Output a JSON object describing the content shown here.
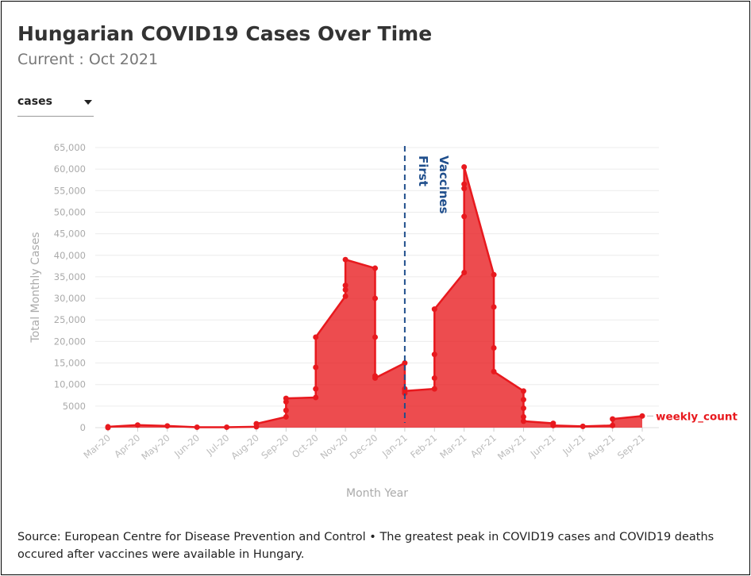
{
  "title": "Hungarian COVID19 Cases Over Time",
  "subtitle": "Current : Oct 2021",
  "dropdown": "cases",
  "source": "Source: European Centre for Disease Prevention and Control • The greatest peak in COVID19 cases and COVID19 deaths occured after vaccines were available in Hungary.",
  "chart_data": {
    "type": "area",
    "xlabel": "Month Year",
    "ylabel": "Total Monthly Cases",
    "categories": [
      "Mar-20",
      "Apr-20",
      "May-20",
      "Jun-20",
      "Jul-20",
      "Aug-20",
      "Sep-20",
      "Oct-20",
      "Nov-20",
      "Dec-20",
      "Jan-21",
      "Feb-21",
      "Mar-21",
      "Apr-21",
      "May-21",
      "Jun-21",
      "Jul-21",
      "Aug-21",
      "Sep-21"
    ],
    "ylim": [
      0,
      65000
    ],
    "yticks": [
      0,
      5000,
      {
        "value": 10000,
        "label": "10,000"
      },
      {
        "value": 15000,
        "label": "15,000"
      },
      {
        "value": 20000,
        "label": "20,000"
      },
      {
        "value": 25000,
        "label": "25,000"
      },
      {
        "value": 30000,
        "label": "30,000"
      },
      {
        "value": 35000,
        "label": "35,000"
      },
      {
        "value": 40000,
        "label": "40,000"
      },
      {
        "value": 45000,
        "label": "45,000"
      },
      {
        "value": 50000,
        "label": "50,000"
      },
      {
        "value": 55000,
        "label": "55,000"
      },
      {
        "value": 60000,
        "label": "60,000"
      },
      {
        "value": 65000,
        "label": "65,000"
      }
    ],
    "grid": true,
    "annotation": {
      "text": [
        "First",
        "Vaccines"
      ],
      "x": "Jan-21",
      "color": "#1f4e8c"
    },
    "series": [
      {
        "name": "weekly_count",
        "color": "#e8191e",
        "x": [
          "Mar-20",
          "Mar-20",
          "Apr-20",
          "May-20",
          "Jun-20",
          "Jul-20",
          "Aug-20",
          "Aug-20",
          "Sep-20",
          "Sep-20",
          "Sep-20",
          "Sep-20",
          "Oct-20",
          "Oct-20",
          "Oct-20",
          "Oct-20",
          "Nov-20",
          "Nov-20",
          "Nov-20",
          "Nov-20",
          "Dec-20",
          "Dec-20",
          "Dec-20",
          "Dec-20",
          "Dec-20",
          "Jan-21",
          "Jan-21",
          "Jan-21",
          "Jan-21",
          "Feb-21",
          "Feb-21",
          "Feb-21",
          "Feb-21",
          "Mar-21",
          "Mar-21",
          "Mar-21",
          "Mar-21",
          "Mar-21",
          "Apr-21",
          "Apr-21",
          "Apr-21",
          "Apr-21",
          "May-21",
          "May-21",
          "May-21",
          "May-21",
          "May-21",
          "Jun-21",
          "Jun-21",
          "Jul-21",
          "Aug-21",
          "Aug-21",
          "Sep-21"
        ],
        "values": [
          0,
          200,
          600,
          400,
          100,
          100,
          200,
          900,
          2500,
          4000,
          6000,
          6800,
          7000,
          9000,
          14000,
          21000,
          30500,
          32000,
          33000,
          39000,
          37000,
          30000,
          21000,
          12000,
          11500,
          15000,
          9000,
          8000,
          8500,
          9000,
          11500,
          17000,
          27500,
          36000,
          49000,
          55500,
          56500,
          60500,
          35500,
          28000,
          18500,
          13000,
          8500,
          6500,
          4500,
          2500,
          1500,
          1000,
          500,
          300,
          500,
          2000,
          2700
        ]
      }
    ]
  }
}
